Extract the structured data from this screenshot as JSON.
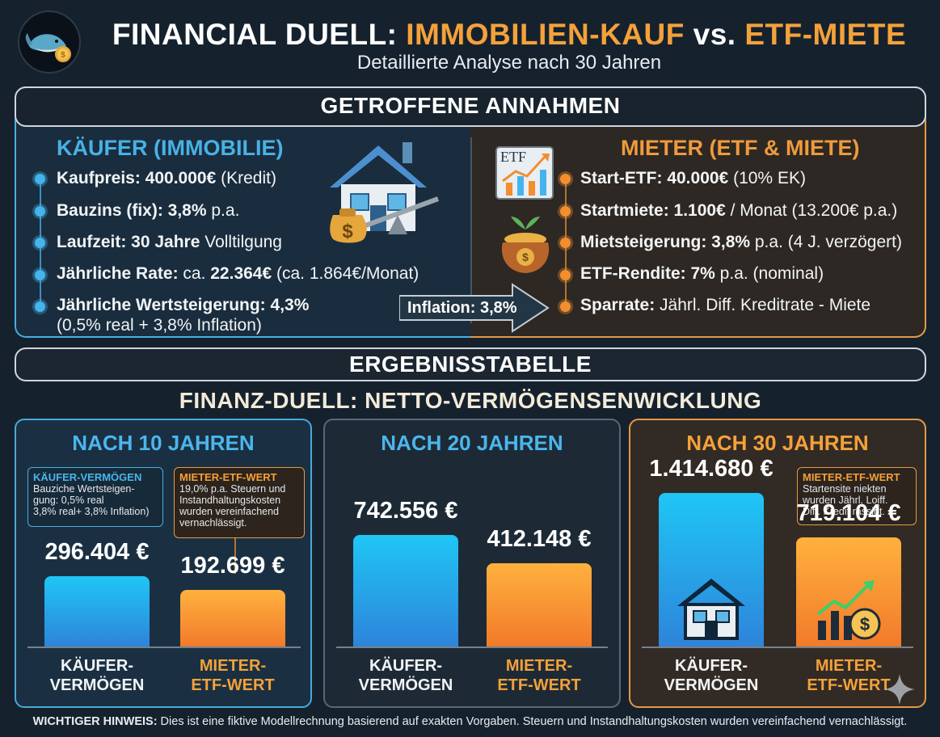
{
  "header": {
    "title_part1": "FINANCIAL DUELL: ",
    "title_part2": "IMMOBILIEN-KAUF",
    "title_part3": " vs. ",
    "title_part4": "ETF-MIETE",
    "subtitle": "Detaillierte Analyse nach 30 Jahren"
  },
  "assumptions": {
    "title": "GETROFFENE ANNAHMEN",
    "kaeufer": {
      "heading": "KÄUFER (IMMOBILIE)",
      "items": [
        {
          "label": "Kaufpreis: 400.000€",
          "rest": " (Kredit)"
        },
        {
          "label": "Bauzins (fix): 3,8%",
          "rest": " p.a."
        },
        {
          "label": "Laufzeit: 30 Jahre",
          "rest": " Volltilgung"
        },
        {
          "label": "Jährliche Rate:",
          "rest": " ca. ",
          "label2": "22.364€",
          "rest2": " (ca. 1.864€/Monat)"
        },
        {
          "label": "Jährliche Wertsteigerung: 4,3%",
          "rest": "",
          "line2": "(0,5% real + 3,8% Inflation)"
        }
      ]
    },
    "mieter": {
      "heading": "MIETER (ETF & MIETE)",
      "etf_icon_label": "ETF",
      "items": [
        {
          "label": "Start-ETF: 40.000€",
          "rest": " (10% EK)"
        },
        {
          "label": "Startmiete: 1.100€",
          "rest": " / Monat (13.200€ p.a.)"
        },
        {
          "label": "Mietsteigerung: 3,8%",
          "rest": " p.a. (4 J. verzögert)"
        },
        {
          "label": "ETF-Rendite: 7%",
          "rest": " p.a. (nominal)"
        },
        {
          "label": "Sparrate:",
          "rest": " Jährl. Diff. Kreditrate - Miete"
        }
      ]
    },
    "inflation_label": "Inflation: 3,8%"
  },
  "results": {
    "section_title": "ERGEBNISSTABELLE",
    "table_title": "FINANZ-DUELL: NETTO-VERMÖGENSENWICKLUNG",
    "panels": [
      {
        "title": "NACH 10 JAHREN",
        "kaeufer_value": "296.404 €",
        "mieter_value": "192.699 €",
        "note_kaeufer_title": "KÄUFER-VERMÖGEN",
        "note_kaeufer_l1": "Bauziche Wertsteigen-",
        "note_kaeufer_l2": "gung: 0,5% real",
        "note_kaeufer_l3": "3,8% real+ 3,8% Inflation)",
        "note_mieter_title": "MIETER-ETF-WERT",
        "note_mieter_l1": "19,0% p.a. Steuern und",
        "note_mieter_l2": "Instandhaltungskosten",
        "note_mieter_l3": "wurden vereinfachend",
        "note_mieter_l4": "vernachlässigt.",
        "xlabel_kaeufer_l1": "KÄUFER-",
        "xlabel_kaeufer_l2": "VERMÖGEN",
        "xlabel_mieter_l1": "MIETER-",
        "xlabel_mieter_l2": "ETF-WERT"
      },
      {
        "title": "NACH 20 JAHREN",
        "kaeufer_value": "742.556 €",
        "mieter_value": "412.148 €",
        "xlabel_kaeufer_l1": "KÄUFER-",
        "xlabel_kaeufer_l2": "VERMÖGEN",
        "xlabel_mieter_l1": "MIETER-",
        "xlabel_mieter_l2": "ETF-WERT"
      },
      {
        "title": "NACH 30 JAHREN",
        "kaeufer_value": "1.414.680 €",
        "mieter_value": "719.104 €",
        "note_mieter_title": "MIETER-ETF-WERT",
        "note_mieter_l1": "Startensite niekten",
        "note_mieter_l2": "wurden Jährl. Loiff.",
        "note_mieter_l3": "Diff. Kredit rassigt.",
        "xlabel_kaeufer_l1": "KÄUFER-",
        "xlabel_kaeufer_l2": "VERMÖGEN",
        "xlabel_mieter_l1": "MIETER-",
        "xlabel_mieter_l2": "ETF-WERT"
      }
    ]
  },
  "chart_data": {
    "type": "bar",
    "categories": [
      "NACH 10 JAHREN",
      "NACH 20 JAHREN",
      "NACH 30 JAHREN"
    ],
    "series": [
      {
        "name": "KÄUFER-VERMÖGEN",
        "values": [
          296404,
          742556,
          1414680
        ]
      },
      {
        "name": "MIETER-ETF-WERT",
        "values": [
          192699,
          412148,
          719104
        ]
      }
    ]
  },
  "footer": {
    "bold": "WICHTIGER HINWEIS:",
    "text": " Dies ist eine fiktive Modellrechnung basierend auf exakten Vorgaben. Steuern und Instandhaltungskosten wurden vereinfachend vernachlässigt."
  },
  "colors": {
    "background": "#15222e",
    "kaeufer_accent": "#47b2e6",
    "mieter_accent": "#f09a3c"
  }
}
